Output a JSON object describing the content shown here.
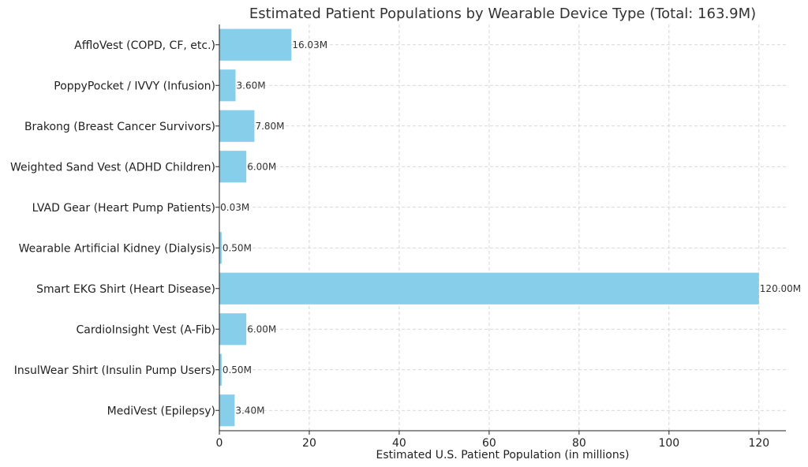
{
  "chart_data": {
    "type": "bar",
    "orientation": "horizontal",
    "title": "Estimated Patient Populations by Wearable Device Type (Total: 163.9M)",
    "xlabel": "Estimated U.S. Patient Population (in millions)",
    "ylabel": "",
    "xlim": [
      0,
      126
    ],
    "xticks": [
      0,
      20,
      40,
      60,
      80,
      100,
      120
    ],
    "grid": true,
    "bar_color": "#87ceeb",
    "categories": [
      "AffloVest (COPD, CF, etc.)",
      "PoppyPocket / IVVY (Infusion)",
      "Brakong (Breast Cancer Survivors)",
      "Weighted Sand Vest (ADHD Children)",
      "LVAD Gear (Heart Pump Patients)",
      "Wearable Artificial Kidney (Dialysis)",
      "Smart EKG Shirt (Heart Disease)",
      "CardioInsight Vest (A-Fib)",
      "InsulWear Shirt (Insulin Pump Users)",
      "MediVest (Epilepsy)"
    ],
    "values": [
      16.03,
      3.6,
      7.8,
      6.0,
      0.03,
      0.5,
      120.0,
      6.0,
      0.5,
      3.4
    ],
    "value_labels": [
      "16.03M",
      "3.60M",
      "7.80M",
      "6.00M",
      "0.03M",
      "0.50M",
      "120.00M",
      "6.00M",
      "0.50M",
      "3.40M"
    ]
  }
}
